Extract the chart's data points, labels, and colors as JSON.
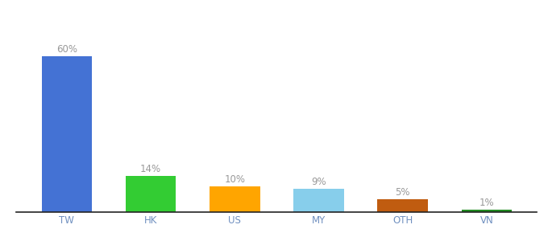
{
  "categories": [
    "TW",
    "HK",
    "US",
    "MY",
    "OTH",
    "VN"
  ],
  "values": [
    60,
    14,
    10,
    9,
    5,
    1
  ],
  "labels": [
    "60%",
    "14%",
    "10%",
    "9%",
    "5%",
    "1%"
  ],
  "bar_colors": [
    "#4472D4",
    "#33CC33",
    "#FFA500",
    "#87CEEB",
    "#C05C10",
    "#228B22"
  ],
  "ylim": [
    0,
    75
  ],
  "background_color": "#ffffff",
  "label_color": "#999999",
  "label_fontsize": 8.5,
  "tick_fontsize": 8.5,
  "tick_color": "#7090C0",
  "bar_width": 0.6
}
